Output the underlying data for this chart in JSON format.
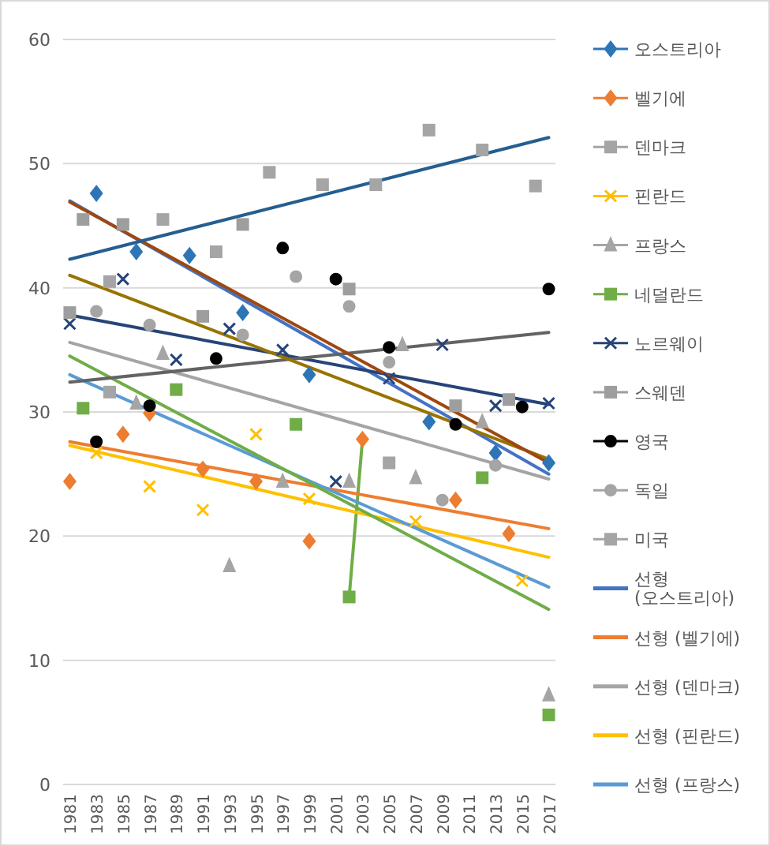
{
  "chart_data": {
    "type": "scatter",
    "xlim": [
      1980.5,
      2017.5
    ],
    "xticks": [
      1981,
      1983,
      1985,
      1987,
      1989,
      1991,
      1993,
      1995,
      1997,
      1999,
      2001,
      2003,
      2005,
      2007,
      2009,
      2011,
      2013,
      2015,
      2017
    ],
    "ylim": [
      0,
      60
    ],
    "yticks": [
      0,
      10,
      20,
      30,
      40,
      50,
      60
    ],
    "grid": "y",
    "legend": "right",
    "series": [
      {
        "name": "오스트리아",
        "marker": "diamond",
        "color": "#2e75b6",
        "x": [
          1983,
          1986,
          1990,
          1994,
          1999,
          2008,
          2013,
          2017
        ],
        "values": [
          47.6,
          42.9,
          42.6,
          38.0,
          33.0,
          29.2,
          26.7,
          25.9
        ]
      },
      {
        "name": "벨기에",
        "marker": "diamond",
        "color": "#ed7d31",
        "x": [
          1981,
          1985,
          1987,
          1991,
          1995,
          1999,
          2003,
          2010,
          2014
        ],
        "values": [
          24.4,
          28.2,
          29.9,
          25.4,
          24.4,
          19.6,
          27.8,
          22.9,
          20.2
        ]
      },
      {
        "name": "덴마크",
        "marker": "square",
        "color": "#a5a5a5",
        "x": [
          1984,
          2005
        ],
        "values": [
          31.6,
          25.9
        ]
      },
      {
        "name": "핀란드",
        "marker": "cross",
        "color": "#ffc000",
        "x": [
          1983,
          1987,
          1991,
          1995,
          1999,
          2007,
          2015
        ],
        "values": [
          26.7,
          24.0,
          22.1,
          28.2,
          23.0,
          21.2,
          16.4
        ]
      },
      {
        "name": "프랑스",
        "marker": "triangle",
        "color": "#a5a5a5",
        "x": [
          1986,
          1988,
          1993,
          1997,
          2002,
          2006,
          2007,
          2012,
          2017
        ],
        "values": [
          30.7,
          34.7,
          17.6,
          24.4,
          24.4,
          35.4,
          24.7,
          29.2,
          7.2
        ]
      },
      {
        "name": "네덜란드",
        "marker": "square",
        "color": "#70ad47",
        "x": [
          1982,
          1989,
          1998,
          2002,
          2012,
          2017
        ],
        "values": [
          30.3,
          31.8,
          29.0,
          15.1,
          24.7,
          5.6
        ]
      },
      {
        "type": "line",
        "color": "#70ad47",
        "x": [
          2002,
          2003
        ],
        "values": [
          15.1,
          27.8
        ]
      },
      {
        "name": "노르웨이",
        "marker": "cross",
        "color": "#264478",
        "x": [
          1981,
          1985,
          1989,
          1993,
          1997,
          2001,
          2005,
          2009,
          2013,
          2017
        ],
        "values": [
          37.1,
          40.7,
          34.2,
          36.7,
          35.0,
          24.4,
          32.7,
          35.4,
          30.5,
          30.7
        ]
      },
      {
        "name": "스웨덴",
        "marker": "square",
        "color": "#9e9e9e",
        "x": [
          1981,
          1982,
          1985,
          1991,
          1994,
          2002,
          2010,
          2014
        ],
        "values": [
          38.0,
          45.5,
          45.1,
          37.7,
          45.1,
          39.9,
          30.5,
          31.0
        ]
      },
      {
        "name": "영국",
        "marker": "circle",
        "color": "#000000",
        "x": [
          1983,
          1987,
          1992,
          1997,
          2001,
          2005,
          2010,
          2015,
          2017
        ],
        "values": [
          27.6,
          30.5,
          34.3,
          43.2,
          40.7,
          35.2,
          29.0,
          30.4,
          39.9
        ]
      },
      {
        "name": "독일",
        "marker": "circle",
        "color": "#a5a5a5",
        "x": [
          1983,
          1987,
          1994,
          1998,
          2002,
          2005,
          2009,
          2013
        ],
        "values": [
          38.1,
          37.0,
          36.2,
          40.9,
          38.5,
          34.0,
          22.9,
          25.7
        ]
      },
      {
        "name": "미국",
        "marker": "square",
        "color": "#a5a5a5",
        "x": [
          1984,
          1988,
          1992,
          1996,
          2000,
          2004,
          2008,
          2012,
          2016
        ],
        "values": [
          40.5,
          45.5,
          42.9,
          49.3,
          48.3,
          48.3,
          52.7,
          51.1,
          48.2
        ]
      },
      {
        "name": "선형 (오스트리아)",
        "type": "line",
        "color": "#4472c4",
        "x": [
          1981,
          2017
        ],
        "values": [
          47.0,
          25.0
        ]
      },
      {
        "name": "선형 (벨기에)",
        "type": "line",
        "color": "#ed7d31",
        "x": [
          1981,
          2017
        ],
        "values": [
          27.6,
          20.6
        ]
      },
      {
        "name": "선형 (덴마크)",
        "type": "line",
        "color": "#a5a5a5",
        "x": [
          1981,
          2017
        ],
        "values": [
          35.6,
          24.6
        ]
      },
      {
        "name": "선형 (핀란드)",
        "type": "line",
        "color": "#ffc000",
        "x": [
          1981,
          2017
        ],
        "values": [
          27.3,
          18.3
        ]
      },
      {
        "name": "선형 (프랑스)",
        "type": "line",
        "color": "#5b9bd5",
        "x": [
          1981,
          2017
        ],
        "values": [
          33.0,
          15.9
        ]
      },
      {
        "type": "line",
        "color": "#70ad47",
        "x": [
          1981,
          2017
        ],
        "values": [
          34.5,
          14.1
        ]
      },
      {
        "type": "line",
        "color": "#264478",
        "x": [
          1981,
          2017
        ],
        "values": [
          37.8,
          30.6
        ]
      },
      {
        "type": "line",
        "color": "#636363",
        "x": [
          1981,
          2017
        ],
        "values": [
          32.4,
          36.4
        ]
      },
      {
        "type": "line",
        "color": "#997300",
        "x": [
          1981,
          2017
        ],
        "values": [
          41.0,
          26.2
        ]
      },
      {
        "type": "line",
        "color": "#9e480e",
        "x": [
          1981,
          2017
        ],
        "values": [
          46.9,
          25.9
        ]
      },
      {
        "type": "line",
        "color": "#255e91",
        "x": [
          1981,
          2017
        ],
        "values": [
          42.3,
          52.1
        ]
      }
    ]
  }
}
